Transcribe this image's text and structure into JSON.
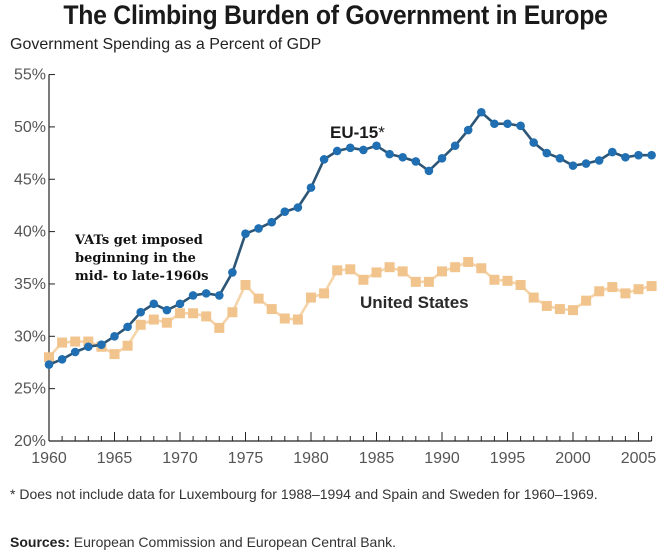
{
  "chart_data": {
    "type": "line",
    "title": "The Climbing Burden of Government in Europe",
    "subtitle": "Government Spending as a Percent of GDP",
    "xlabel": "",
    "ylabel": "",
    "ylim": [
      20,
      55
    ],
    "xlim": [
      1960,
      2006
    ],
    "y_ticks": [
      20,
      25,
      30,
      35,
      40,
      45,
      50,
      55
    ],
    "y_tick_labels": [
      "20%",
      "25%",
      "30%",
      "35%",
      "40%",
      "45%",
      "50%",
      "55%"
    ],
    "x_ticks": [
      1960,
      1965,
      1970,
      1975,
      1980,
      1985,
      1990,
      1995,
      2000,
      2005
    ],
    "x_tick_labels": [
      "1960",
      "1965",
      "1970",
      "1975",
      "1980",
      "1985",
      "1990",
      "1995",
      "2000",
      "2005"
    ],
    "grid": false,
    "x": [
      1960,
      1961,
      1962,
      1963,
      1964,
      1965,
      1966,
      1967,
      1968,
      1969,
      1970,
      1971,
      1972,
      1973,
      1974,
      1975,
      1976,
      1977,
      1978,
      1979,
      1980,
      1981,
      1982,
      1983,
      1984,
      1985,
      1986,
      1987,
      1988,
      1989,
      1990,
      1991,
      1992,
      1993,
      1994,
      1995,
      1996,
      1997,
      1998,
      1999,
      2000,
      2001,
      2002,
      2003,
      2004,
      2005,
      2006
    ],
    "series": [
      {
        "name": "EU-15*",
        "label_text": "EU-15",
        "label_suffix": "*",
        "color": "#1f6fb2",
        "line_color": "#2d5575",
        "marker": "circle",
        "values": [
          27.3,
          27.8,
          28.5,
          29.0,
          29.2,
          30.0,
          30.9,
          32.3,
          33.1,
          32.5,
          33.1,
          33.9,
          34.1,
          33.9,
          36.1,
          39.8,
          40.3,
          40.9,
          41.9,
          42.3,
          44.2,
          46.9,
          47.7,
          48.0,
          47.8,
          48.2,
          47.4,
          47.1,
          46.7,
          45.8,
          47.0,
          48.2,
          49.7,
          51.4,
          50.3,
          50.3,
          50.1,
          48.5,
          47.5,
          47.0,
          46.3,
          46.5,
          46.8,
          47.6,
          47.1,
          47.3,
          47.3
        ]
      },
      {
        "name": "United States",
        "label_text": "United States",
        "color": "#f2c48d",
        "line_color": "#f5d4aa",
        "marker": "square",
        "values": [
          28.0,
          29.4,
          29.5,
          29.5,
          29.0,
          28.3,
          29.1,
          31.1,
          31.6,
          31.3,
          32.2,
          32.2,
          31.9,
          30.8,
          32.3,
          34.9,
          33.6,
          32.6,
          31.7,
          31.6,
          33.7,
          34.1,
          36.3,
          36.4,
          35.4,
          36.1,
          36.6,
          36.2,
          35.2,
          35.2,
          36.2,
          36.6,
          37.1,
          36.5,
          35.4,
          35.3,
          34.9,
          33.7,
          32.9,
          32.6,
          32.5,
          33.4,
          34.3,
          34.7,
          34.1,
          34.5,
          34.8
        ]
      }
    ],
    "annotations": [
      {
        "text_lines": [
          "VATs get imposed",
          "beginning in the",
          "mid- to late-1960s"
        ]
      }
    ],
    "footnote": "* Does not include data for Luxembourg for 1988–1994 and Spain and Sweden for 1960–1969.",
    "sources_label": "Sources:",
    "sources_text": " European Commission and European Central Bank."
  }
}
